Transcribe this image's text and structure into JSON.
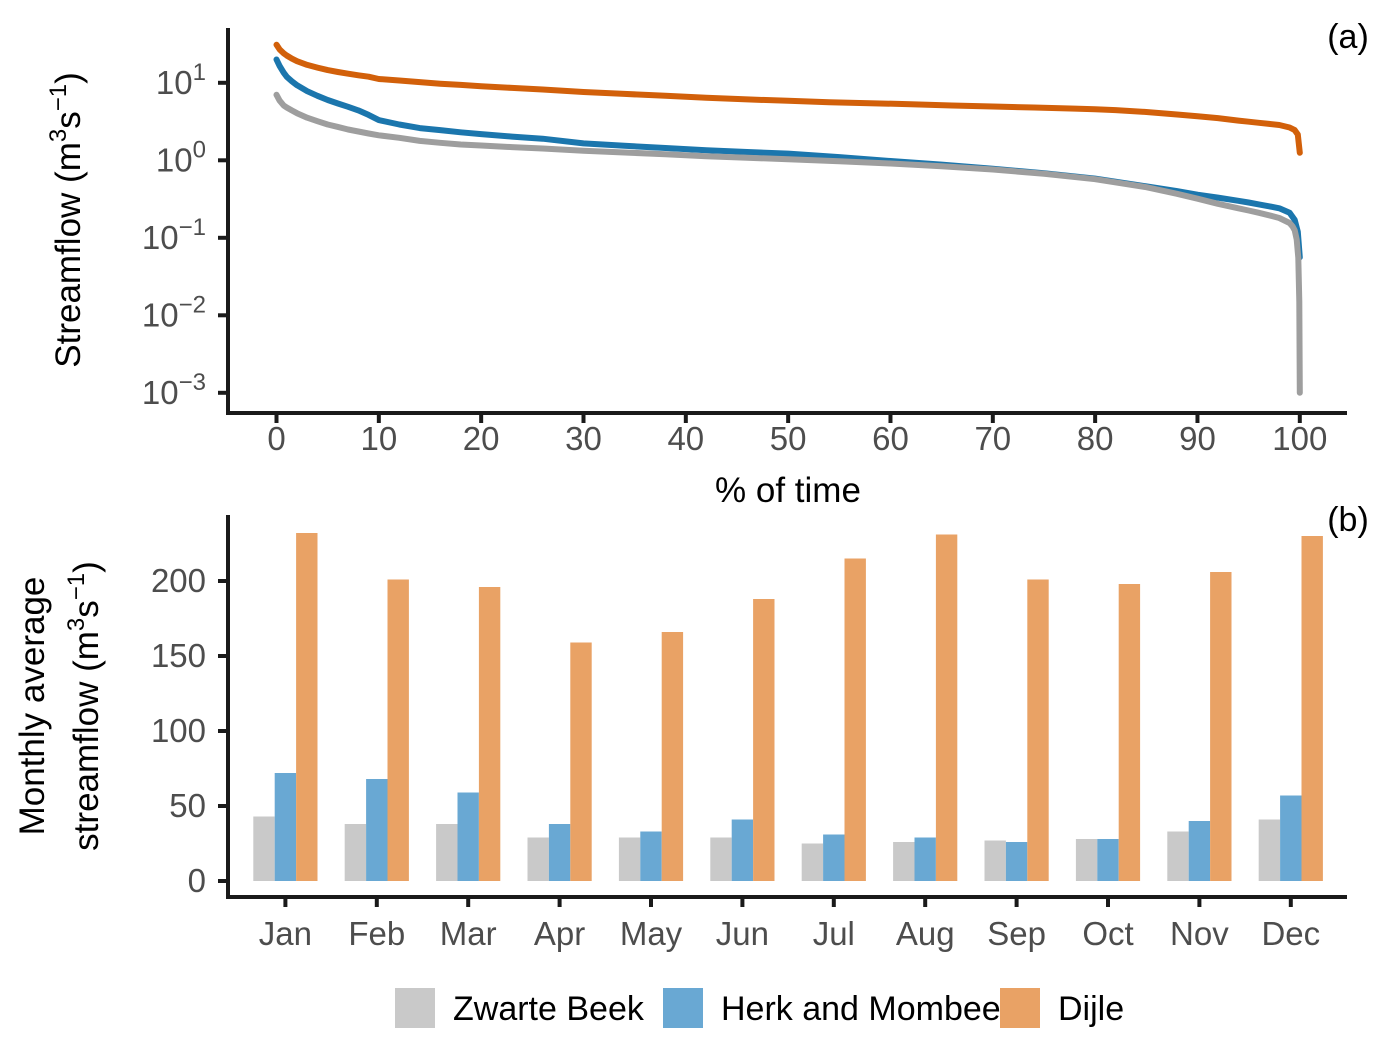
{
  "figure": {
    "panel_a_tag": "(a)",
    "panel_b_tag": "(b)"
  },
  "colors": {
    "axis_line": "#1a1a1a",
    "tick_text": "#4d4d4d",
    "title_text": "#000000",
    "zwarte_beek_line": "#9e9e9e",
    "herk_line": "#1b76ad",
    "dijle_line": "#d2600a",
    "zwarte_beek_bar": "#c9c9c9",
    "herk_bar": "#69a8d3",
    "dijle_bar": "#e9a265"
  },
  "legend": {
    "items": [
      {
        "label": "Zwarte Beek",
        "color": "#c9c9c9"
      },
      {
        "label": "Herk and Mombeek",
        "color": "#69a8d3"
      },
      {
        "label": "Dijle",
        "color": "#e9a265"
      }
    ]
  },
  "chart_data": [
    {
      "type": "line",
      "panel": "a",
      "title": "",
      "xlabel": "% of time",
      "ylabel": "Streamflow (m³s⁻¹)",
      "ylabel_parts": [
        [
          "Streamflow (m",
          false
        ],
        [
          "3",
          true
        ],
        [
          "s",
          false
        ],
        [
          "−1",
          true
        ],
        [
          ")",
          false
        ]
      ],
      "x_ticks": [
        0,
        10,
        20,
        30,
        40,
        50,
        60,
        70,
        80,
        90,
        100
      ],
      "y_tick_exponents": [
        1,
        0,
        -1,
        -2,
        -3
      ],
      "xlim": [
        0,
        100
      ],
      "yscale": "log",
      "ylim": [
        0.001,
        32
      ],
      "grid": "off",
      "draw_order": [
        1,
        0,
        2
      ],
      "series": [
        {
          "name": "Zwarte Beek",
          "color": "#9e9e9e",
          "points": [
            [
              0,
              7.0
            ],
            [
              0.3,
              5.9
            ],
            [
              0.7,
              5.1
            ],
            [
              1,
              4.8
            ],
            [
              1.5,
              4.4
            ],
            [
              2,
              4.05
            ],
            [
              3,
              3.55
            ],
            [
              4,
              3.2
            ],
            [
              5,
              2.9
            ],
            [
              6,
              2.7
            ],
            [
              7,
              2.5
            ],
            [
              8,
              2.35
            ],
            [
              9,
              2.22
            ],
            [
              10,
              2.1
            ],
            [
              12,
              1.95
            ],
            [
              14,
              1.78
            ],
            [
              16,
              1.68
            ],
            [
              18,
              1.6
            ],
            [
              20,
              1.55
            ],
            [
              23,
              1.48
            ],
            [
              26,
              1.42
            ],
            [
              30,
              1.33
            ],
            [
              34,
              1.26
            ],
            [
              38,
              1.2
            ],
            [
              42,
              1.13
            ],
            [
              46,
              1.08
            ],
            [
              50,
              1.03
            ],
            [
              55,
              0.97
            ],
            [
              60,
              0.91
            ],
            [
              65,
              0.84
            ],
            [
              70,
              0.76
            ],
            [
              75,
              0.67
            ],
            [
              80,
              0.57
            ],
            [
              85,
              0.45
            ],
            [
              88,
              0.37
            ],
            [
              90,
              0.32
            ],
            [
              92,
              0.275
            ],
            [
              94,
              0.24
            ],
            [
              95,
              0.225
            ],
            [
              96,
              0.21
            ],
            [
              97,
              0.195
            ],
            [
              98,
              0.18
            ],
            [
              99,
              0.155
            ],
            [
              99.3,
              0.14
            ],
            [
              99.5,
              0.125
            ],
            [
              99.7,
              0.095
            ],
            [
              99.85,
              0.055
            ],
            [
              99.95,
              0.015
            ],
            [
              100,
              0.001
            ]
          ]
        },
        {
          "name": "Herk and Mombeek",
          "color": "#1b76ad",
          "points": [
            [
              0,
              20
            ],
            [
              0.3,
              16.5
            ],
            [
              0.7,
              13.5
            ],
            [
              1,
              12
            ],
            [
              1.5,
              10.5
            ],
            [
              2,
              9.3
            ],
            [
              3,
              7.8
            ],
            [
              4,
              6.8
            ],
            [
              5,
              6.0
            ],
            [
              6,
              5.4
            ],
            [
              7,
              4.9
            ],
            [
              8,
              4.4
            ],
            [
              9,
              3.85
            ],
            [
              10,
              3.3
            ],
            [
              12,
              2.9
            ],
            [
              14,
              2.6
            ],
            [
              16,
              2.45
            ],
            [
              18,
              2.3
            ],
            [
              20,
              2.18
            ],
            [
              23,
              2.02
            ],
            [
              26,
              1.9
            ],
            [
              30,
              1.65
            ],
            [
              34,
              1.54
            ],
            [
              38,
              1.44
            ],
            [
              42,
              1.35
            ],
            [
              46,
              1.28
            ],
            [
              50,
              1.22
            ],
            [
              55,
              1.1
            ],
            [
              60,
              0.98
            ],
            [
              65,
              0.88
            ],
            [
              70,
              0.78
            ],
            [
              75,
              0.68
            ],
            [
              80,
              0.58
            ],
            [
              85,
              0.46
            ],
            [
              88,
              0.4
            ],
            [
              90,
              0.36
            ],
            [
              92,
              0.33
            ],
            [
              94,
              0.3
            ],
            [
              95,
              0.285
            ],
            [
              96,
              0.27
            ],
            [
              97,
              0.255
            ],
            [
              98,
              0.24
            ],
            [
              99,
              0.21
            ],
            [
              99.5,
              0.17
            ],
            [
              99.8,
              0.12
            ],
            [
              100,
              0.056
            ]
          ]
        },
        {
          "name": "Dijle",
          "color": "#d2600a",
          "points": [
            [
              0,
              31
            ],
            [
              0.3,
              27
            ],
            [
              0.7,
              24
            ],
            [
              1,
              22.5
            ],
            [
              1.5,
              20.5
            ],
            [
              2,
              19
            ],
            [
              3,
              17
            ],
            [
              4,
              15.7
            ],
            [
              5,
              14.6
            ],
            [
              6,
              13.8
            ],
            [
              7,
              13.1
            ],
            [
              8,
              12.5
            ],
            [
              9,
              12
            ],
            [
              10,
              11.2
            ],
            [
              12,
              10.7
            ],
            [
              14,
              10.2
            ],
            [
              16,
              9.75
            ],
            [
              18,
              9.4
            ],
            [
              20,
              9.05
            ],
            [
              23,
              8.6
            ],
            [
              26,
              8.2
            ],
            [
              30,
              7.6
            ],
            [
              34,
              7.2
            ],
            [
              38,
              6.8
            ],
            [
              42,
              6.4
            ],
            [
              46,
              6.1
            ],
            [
              50,
              5.85
            ],
            [
              54,
              5.6
            ],
            [
              58,
              5.45
            ],
            [
              62,
              5.3
            ],
            [
              66,
              5.1
            ],
            [
              70,
              4.95
            ],
            [
              74,
              4.8
            ],
            [
              78,
              4.65
            ],
            [
              80,
              4.55
            ],
            [
              82,
              4.45
            ],
            [
              85,
              4.2
            ],
            [
              88,
              3.9
            ],
            [
              90,
              3.7
            ],
            [
              92,
              3.5
            ],
            [
              94,
              3.25
            ],
            [
              95,
              3.15
            ],
            [
              96,
              3.05
            ],
            [
              97,
              2.95
            ],
            [
              98,
              2.85
            ],
            [
              99,
              2.65
            ],
            [
              99.5,
              2.45
            ],
            [
              99.8,
              2.15
            ],
            [
              100,
              1.25
            ]
          ]
        }
      ]
    },
    {
      "type": "bar",
      "panel": "b",
      "title": "",
      "xlabel": "",
      "ylabel": "Monthly average streamflow (m³s⁻¹)",
      "ylabel_line1": "Monthly average",
      "ylabel_line2_parts": [
        [
          "streamflow (m",
          false
        ],
        [
          "3",
          true
        ],
        [
          "s",
          false
        ],
        [
          "−1",
          true
        ],
        [
          ")",
          false
        ]
      ],
      "categories": [
        "Jan",
        "Feb",
        "Mar",
        "Apr",
        "May",
        "Jun",
        "Jul",
        "Aug",
        "Sep",
        "Oct",
        "Nov",
        "Dec"
      ],
      "y_ticks": [
        0,
        50,
        100,
        150,
        200
      ],
      "ylim": [
        0,
        243
      ],
      "grid": "off",
      "series": [
        {
          "name": "Zwarte Beek",
          "color": "#c9c9c9",
          "values": [
            43,
            38,
            38,
            29,
            29,
            29,
            25,
            26,
            27,
            28,
            33,
            41
          ]
        },
        {
          "name": "Herk and Mombeek",
          "color": "#69a8d3",
          "values": [
            72,
            68,
            59,
            38,
            33,
            41,
            31,
            29,
            26,
            28,
            40,
            57
          ]
        },
        {
          "name": "Dijle",
          "color": "#e9a265",
          "values": [
            232,
            201,
            196,
            159,
            166,
            188,
            215,
            231,
            201,
            198,
            206,
            230
          ]
        }
      ]
    }
  ]
}
